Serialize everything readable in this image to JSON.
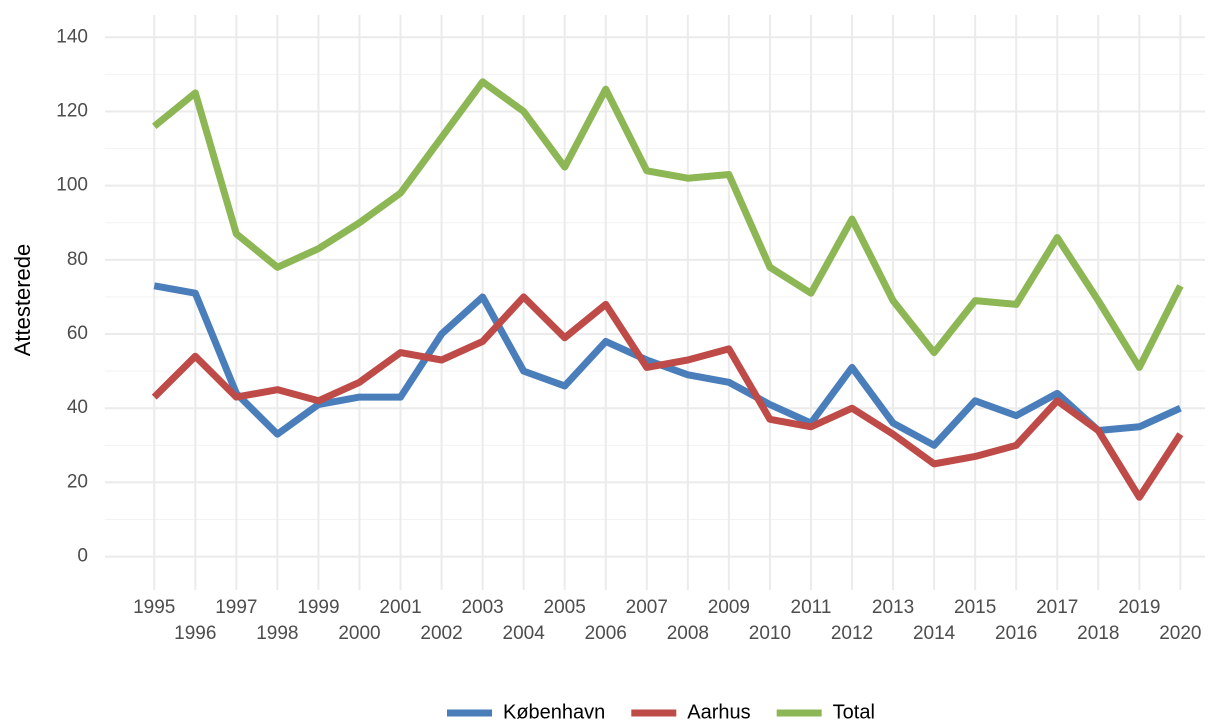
{
  "chart_data": {
    "type": "line",
    "y_label": "Attesterede",
    "x": [
      1995,
      1996,
      1997,
      1998,
      1999,
      2000,
      2001,
      2002,
      2003,
      2004,
      2005,
      2006,
      2007,
      2008,
      2009,
      2010,
      2011,
      2012,
      2013,
      2014,
      2015,
      2016,
      2017,
      2018,
      2019,
      2020
    ],
    "series": [
      {
        "name": "København",
        "color": "#4a7ebb",
        "values": [
          73,
          71,
          44,
          33,
          41,
          43,
          43,
          60,
          70,
          50,
          46,
          58,
          53,
          49,
          47,
          41,
          36,
          51,
          36,
          30,
          42,
          38,
          44,
          34,
          35,
          40
        ]
      },
      {
        "name": "Aarhus",
        "color": "#be4b48",
        "values": [
          43,
          54,
          43,
          45,
          42,
          47,
          55,
          53,
          58,
          70,
          59,
          68,
          51,
          53,
          56,
          37,
          35,
          40,
          33,
          25,
          27,
          30,
          42,
          34,
          16,
          33
        ]
      },
      {
        "name": "Total",
        "color": "#8db654",
        "values": [
          116,
          125,
          87,
          78,
          83,
          90,
          98,
          113,
          128,
          120,
          105,
          126,
          104,
          102,
          103,
          78,
          71,
          91,
          69,
          55,
          69,
          68,
          86,
          69,
          51,
          73
        ]
      }
    ],
    "xlim": [
      1993.8,
      2020.6
    ],
    "xticks": [
      1995,
      1996,
      1997,
      1998,
      1999,
      2000,
      2001,
      2002,
      2003,
      2004,
      2005,
      2006,
      2007,
      2008,
      2009,
      2010,
      2011,
      2012,
      2013,
      2014,
      2015,
      2016,
      2017,
      2018,
      2019,
      2020
    ],
    "ylim": [
      -9,
      146
    ],
    "yticks": [
      0,
      20,
      40,
      60,
      80,
      100,
      120,
      140
    ],
    "grid": true,
    "minor_grid": true,
    "legend": "bottom"
  }
}
